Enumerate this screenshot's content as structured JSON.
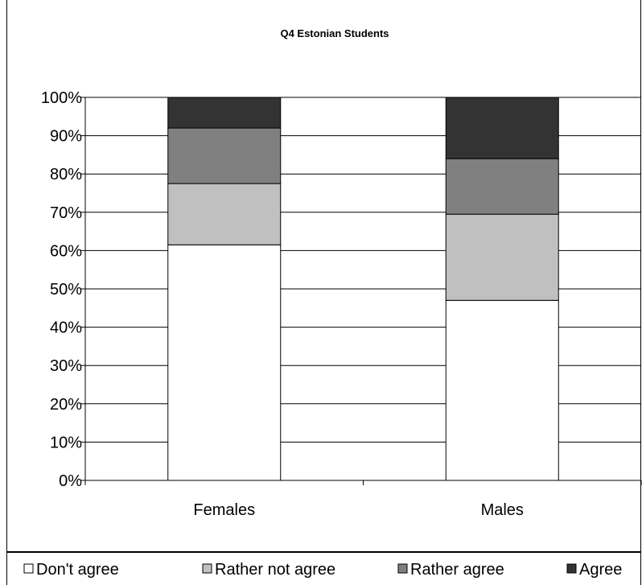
{
  "chart_data": {
    "type": "bar",
    "stacked": true,
    "title": "Q4 Estonian Students",
    "categories": [
      "Females",
      "Males"
    ],
    "series": [
      {
        "name": "Don't agree",
        "values": [
          61.5,
          47
        ],
        "color": "#ffffff"
      },
      {
        "name": "Rather not agree",
        "values": [
          16,
          22.5
        ],
        "color": "#c0c0c0"
      },
      {
        "name": "Rather agree",
        "values": [
          14.5,
          14.5
        ],
        "color": "#808080"
      },
      {
        "name": "Agree",
        "values": [
          8,
          16
        ],
        "color": "#333333"
      }
    ],
    "y_ticks": [
      "0%",
      "10%",
      "20%",
      "30%",
      "40%",
      "50%",
      "60%",
      "70%",
      "80%",
      "90%",
      "100%"
    ],
    "ylim": [
      0,
      100
    ],
    "grid": true,
    "legend_position": "bottom"
  }
}
